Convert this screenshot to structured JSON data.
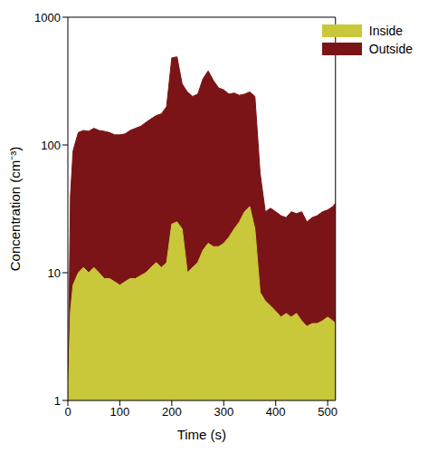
{
  "chart_data": {
    "type": "area",
    "x_label": "Time (s)",
    "y_label": "Concentration (cm⁻³)",
    "log": "y",
    "grid": false,
    "legend": "upper right",
    "stacked": false,
    "xlim": [
      0,
      515
    ],
    "xticks": [
      0,
      100,
      200,
      300,
      400,
      500
    ],
    "ylim": [
      1,
      1000
    ],
    "yticks": [
      1,
      10,
      100,
      1000
    ],
    "x": [
      0,
      5,
      10,
      20,
      30,
      40,
      50,
      60,
      70,
      80,
      90,
      100,
      110,
      120,
      130,
      140,
      150,
      160,
      170,
      180,
      190,
      200,
      210,
      220,
      230,
      240,
      250,
      260,
      270,
      280,
      290,
      300,
      310,
      320,
      330,
      340,
      350,
      360,
      370,
      380,
      390,
      400,
      410,
      420,
      430,
      440,
      450,
      460,
      470,
      480,
      490,
      500,
      510,
      515
    ],
    "series": [
      {
        "name": "Inside",
        "color": "#c8c83a",
        "values": [
          1,
          5,
          8,
          10,
          11,
          10,
          11,
          10,
          9,
          9,
          8.5,
          8,
          8.5,
          9,
          9,
          9.5,
          10,
          11,
          12,
          11,
          12,
          24,
          25,
          22,
          10,
          11,
          12,
          15,
          17,
          16,
          16,
          17,
          19,
          22,
          25,
          30,
          33,
          22,
          7,
          6,
          5.5,
          5,
          4.5,
          4.8,
          4.5,
          4.8,
          4.2,
          3.8,
          4,
          4,
          4.2,
          4.5,
          4.2,
          4
        ]
      },
      {
        "name": "Outside",
        "color": "#7b1416",
        "values": [
          1,
          40,
          90,
          125,
          130,
          128,
          135,
          130,
          128,
          125,
          120,
          120,
          122,
          130,
          135,
          140,
          150,
          160,
          170,
          175,
          200,
          480,
          490,
          300,
          260,
          240,
          250,
          330,
          380,
          320,
          280,
          270,
          250,
          255,
          245,
          250,
          260,
          240,
          60,
          30,
          32,
          30,
          28,
          27,
          30,
          29,
          30,
          25,
          27,
          28,
          30,
          31,
          33,
          35
        ]
      }
    ]
  }
}
